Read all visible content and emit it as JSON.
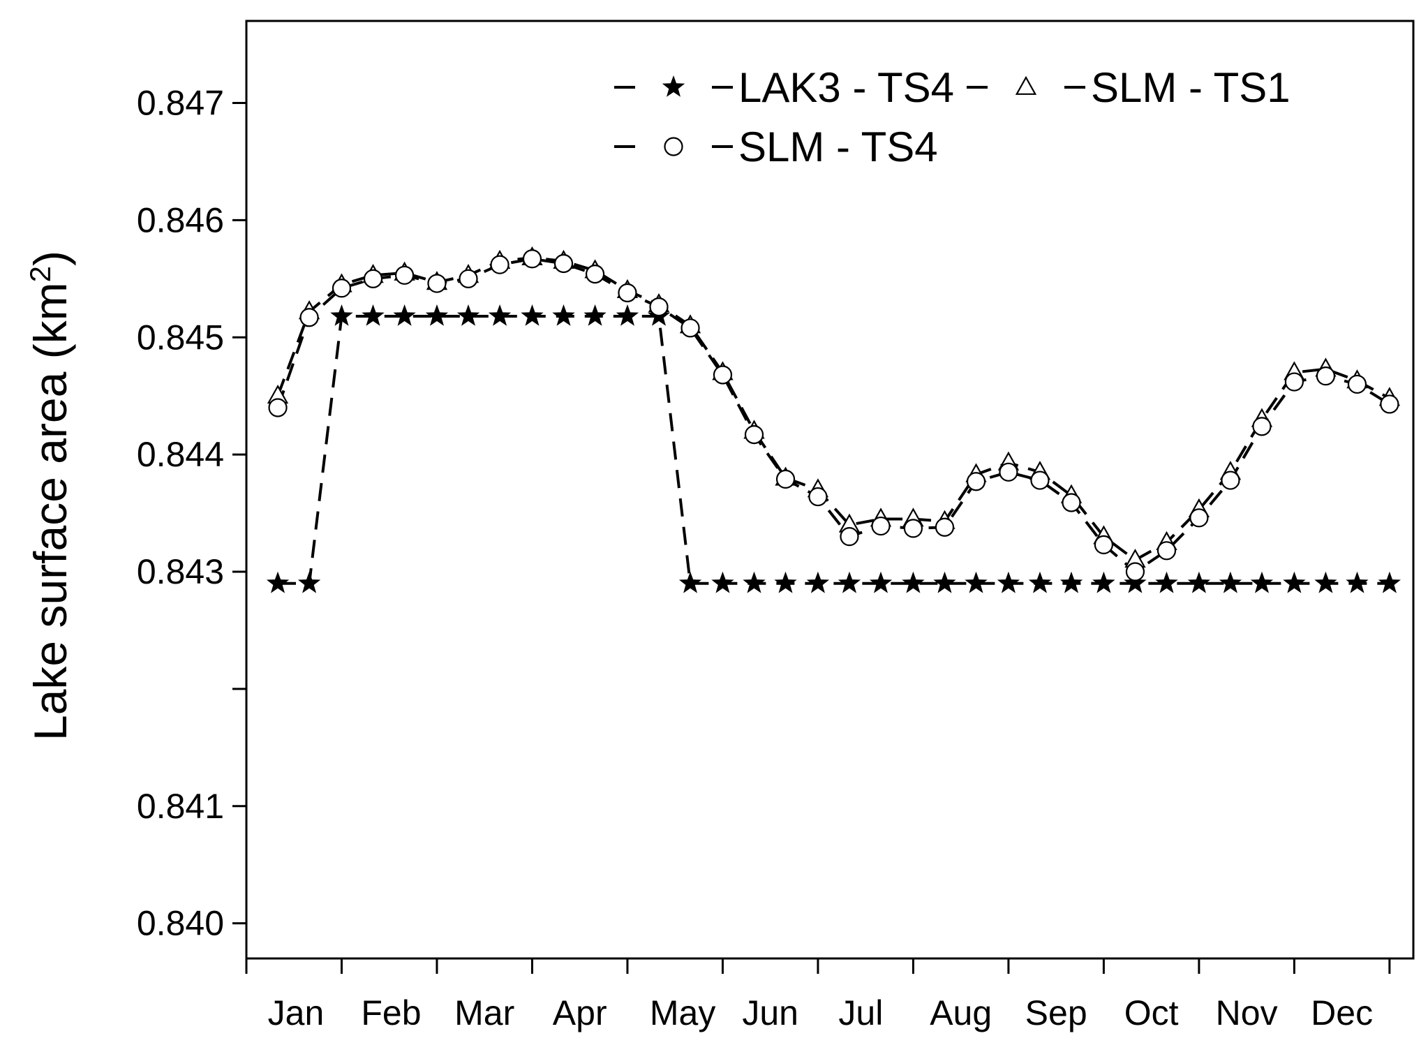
{
  "chart_data": {
    "type": "line",
    "title": "",
    "xlabel": "",
    "ylabel": {
      "text": "Lake surface area (km",
      "sup": "2",
      "close": ")"
    },
    "ylim": [
      0.8397,
      0.8477
    ],
    "yticks": [
      0.84,
      0.841,
      0.842,
      0.843,
      0.844,
      0.845,
      0.846,
      0.847
    ],
    "ytick_labels": [
      "0.840",
      "0.841",
      "",
      "0.843",
      "0.844",
      "0.845",
      "0.846",
      "0.847"
    ],
    "xlim": [
      0,
      12.25
    ],
    "month_boundaries": [
      1,
      2,
      3,
      4,
      5,
      6,
      7,
      8,
      9,
      10,
      11,
      12
    ],
    "month_labels": [
      {
        "label": "Jan",
        "x": 0.52
      },
      {
        "label": "Feb",
        "x": 1.52
      },
      {
        "label": "Mar",
        "x": 2.5
      },
      {
        "label": "Apr",
        "x": 3.5
      },
      {
        "label": "May",
        "x": 4.58
      },
      {
        "label": "Jun",
        "x": 5.5
      },
      {
        "label": "Jul",
        "x": 6.45
      },
      {
        "label": "Aug",
        "x": 7.5
      },
      {
        "label": "Sep",
        "x": 8.5
      },
      {
        "label": "Oct",
        "x": 9.5
      },
      {
        "label": "Nov",
        "x": 10.5
      },
      {
        "label": "Dec",
        "x": 11.5
      }
    ],
    "x": [
      0.33,
      0.66,
      1.0,
      1.33,
      1.66,
      2.0,
      2.33,
      2.66,
      3.0,
      3.33,
      3.66,
      4.0,
      4.33,
      4.66,
      5.0,
      5.33,
      5.66,
      6.0,
      6.33,
      6.66,
      7.0,
      7.33,
      7.66,
      8.0,
      8.33,
      8.66,
      9.0,
      9.33,
      9.66,
      10.0,
      10.33,
      10.66,
      11.0,
      11.33,
      11.66,
      12.0
    ],
    "series": [
      {
        "name": "LAK3 - TS4",
        "marker": "star",
        "values": [
          0.8429,
          0.8429,
          0.84518,
          0.84518,
          0.84518,
          0.84518,
          0.84518,
          0.84518,
          0.84518,
          0.84518,
          0.84518,
          0.84518,
          0.84518,
          0.8429,
          0.8429,
          0.8429,
          0.8429,
          0.8429,
          0.8429,
          0.8429,
          0.8429,
          0.8429,
          0.8429,
          0.8429,
          0.8429,
          0.8429,
          0.8429,
          0.8429,
          0.8429,
          0.8429,
          0.8429,
          0.8429,
          0.8429,
          0.8429,
          0.8429,
          0.8429
        ]
      },
      {
        "name": "SLM - TS1",
        "marker": "triangle",
        "values": [
          0.8445,
          0.84522,
          0.84545,
          0.84553,
          0.84555,
          0.84547,
          0.84553,
          0.84565,
          0.84568,
          0.84565,
          0.84557,
          0.8454,
          0.84528,
          0.8451,
          0.8447,
          0.8442,
          0.8438,
          0.8437,
          0.8434,
          0.84345,
          0.84345,
          0.84343,
          0.84383,
          0.84393,
          0.84385,
          0.84365,
          0.8433,
          0.8431,
          0.84325,
          0.84353,
          0.84385,
          0.8443,
          0.8447,
          0.84473,
          0.84463,
          0.84448
        ]
      },
      {
        "name": "SLM - TS4",
        "marker": "circle",
        "values": [
          0.8444,
          0.84517,
          0.84542,
          0.8455,
          0.84553,
          0.84546,
          0.8455,
          0.84562,
          0.84567,
          0.84563,
          0.84554,
          0.84538,
          0.84526,
          0.84508,
          0.84468,
          0.84417,
          0.84379,
          0.84364,
          0.8433,
          0.84339,
          0.84337,
          0.84338,
          0.84377,
          0.84385,
          0.84378,
          0.84359,
          0.84323,
          0.843,
          0.84318,
          0.84346,
          0.84378,
          0.84424,
          0.84462,
          0.84467,
          0.8446,
          0.84443
        ]
      }
    ],
    "legend": {
      "placement": "top-right",
      "entries": [
        "LAK3 - TS4",
        "SLM - TS1",
        "SLM - TS4"
      ]
    }
  }
}
